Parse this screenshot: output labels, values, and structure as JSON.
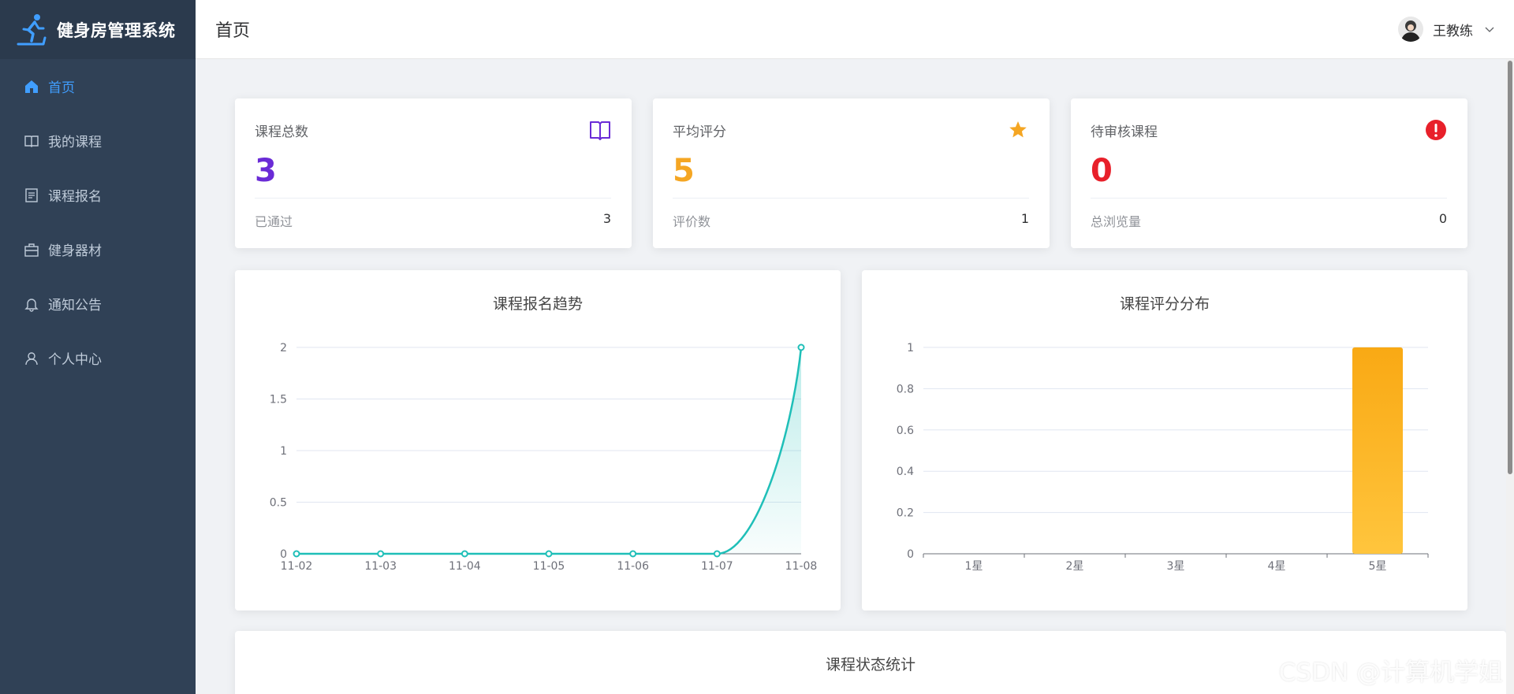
{
  "app": {
    "title": "健身房管理系统"
  },
  "sidebar": {
    "items": [
      {
        "label": "首页",
        "icon": "home-icon",
        "active": true
      },
      {
        "label": "我的课程",
        "icon": "book-icon",
        "active": false
      },
      {
        "label": "课程报名",
        "icon": "document-icon",
        "active": false
      },
      {
        "label": "健身器材",
        "icon": "box-icon",
        "active": false
      },
      {
        "label": "通知公告",
        "icon": "bell-icon",
        "active": false
      },
      {
        "label": "个人中心",
        "icon": "user-icon",
        "active": false
      }
    ]
  },
  "header": {
    "title": "首页",
    "user_name": "王教练"
  },
  "stats": [
    {
      "label": "课程总数",
      "value": "3",
      "foot_label": "已通过",
      "foot_value": "3",
      "icon": "book-icon",
      "color": "#6a2bd6"
    },
    {
      "label": "平均评分",
      "value": "5",
      "foot_label": "评价数",
      "foot_value": "1",
      "icon": "star-icon",
      "color": "#f5a623"
    },
    {
      "label": "待审核课程",
      "value": "0",
      "foot_label": "总浏览量",
      "foot_value": "0",
      "icon": "alert-icon",
      "color": "#e8202a"
    }
  ],
  "charts": {
    "trend_title": "课程报名趋势",
    "rating_title": "课程评分分布",
    "status_title": "课程状态统计"
  },
  "chart_data": [
    {
      "type": "line",
      "title": "课程报名趋势",
      "categories": [
        "11-02",
        "11-03",
        "11-04",
        "11-05",
        "11-06",
        "11-07",
        "11-08"
      ],
      "values": [
        0,
        0,
        0,
        0,
        0,
        0,
        2
      ],
      "yticks": [
        "0",
        "0.5",
        "1",
        "1.5",
        "2"
      ],
      "ylim": [
        0,
        2
      ],
      "color": "#1fbfb8",
      "grid": true
    },
    {
      "type": "bar",
      "title": "课程评分分布",
      "categories": [
        "1星",
        "2星",
        "3星",
        "4星",
        "5星"
      ],
      "values": [
        0,
        0,
        0,
        0,
        1
      ],
      "yticks": [
        "0",
        "0.2",
        "0.4",
        "0.6",
        "0.8",
        "1"
      ],
      "ylim": [
        0,
        1
      ],
      "color": "#fbb125",
      "grid": true
    }
  ],
  "watermark": "CSDN @计算机学姐"
}
